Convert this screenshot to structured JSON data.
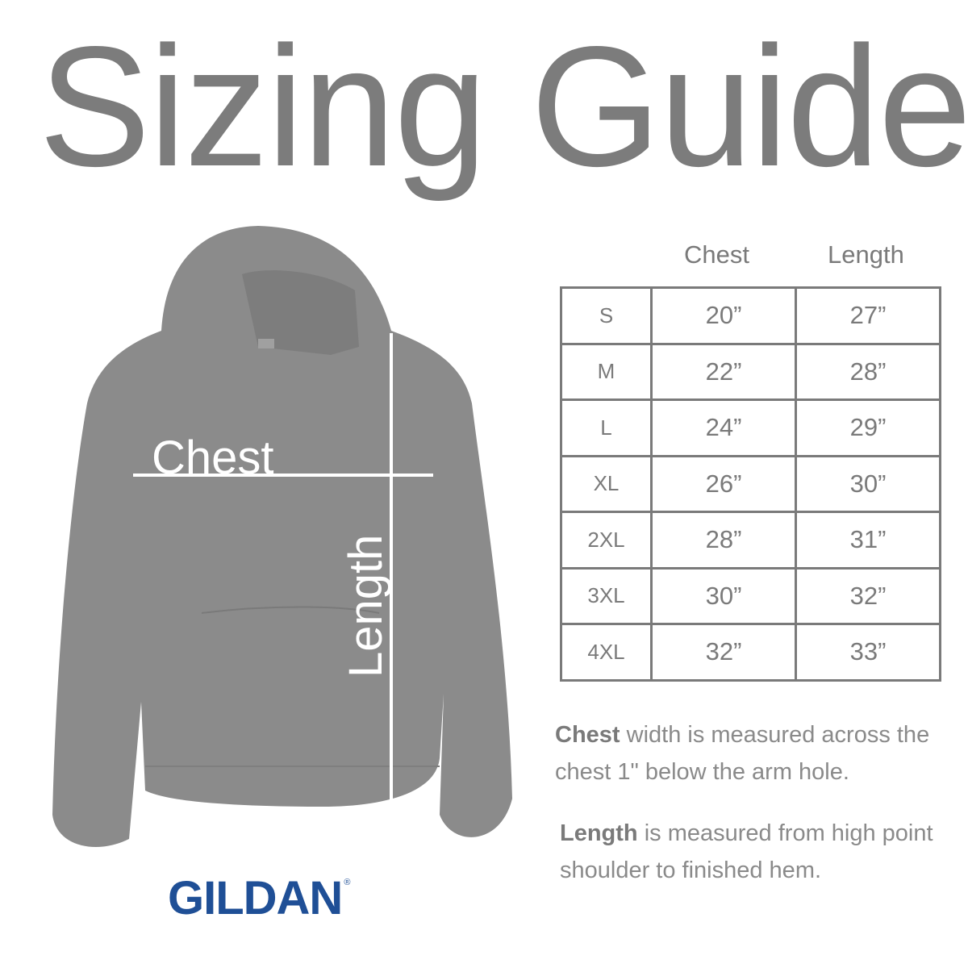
{
  "title": "Sizing Guide",
  "diagram": {
    "chest_label": "Chest",
    "length_label": "Length",
    "garment_color": "#8b8b8b"
  },
  "brand": {
    "name": "GILDAN",
    "registered_mark": "®",
    "color": "#1f4f96"
  },
  "table": {
    "columns": [
      "Chest",
      "Length"
    ],
    "rows": [
      {
        "size": "S",
        "chest": "20”",
        "length": "27”"
      },
      {
        "size": "M",
        "chest": "22”",
        "length": "28”"
      },
      {
        "size": "L",
        "chest": "24”",
        "length": "29”"
      },
      {
        "size": "XL",
        "chest": "26”",
        "length": "30”"
      },
      {
        "size": "2XL",
        "chest": "28”",
        "length": "31”"
      },
      {
        "size": "3XL",
        "chest": "30”",
        "length": "32”"
      },
      {
        "size": "4XL",
        "chest": "32”",
        "length": "33”"
      }
    ]
  },
  "notes": {
    "chest_term": "Chest",
    "chest_text": " width is measured across the chest 1\" below the arm hole.",
    "length_term": "Length",
    "length_text": " is measured from high point shoulder to finished hem."
  }
}
